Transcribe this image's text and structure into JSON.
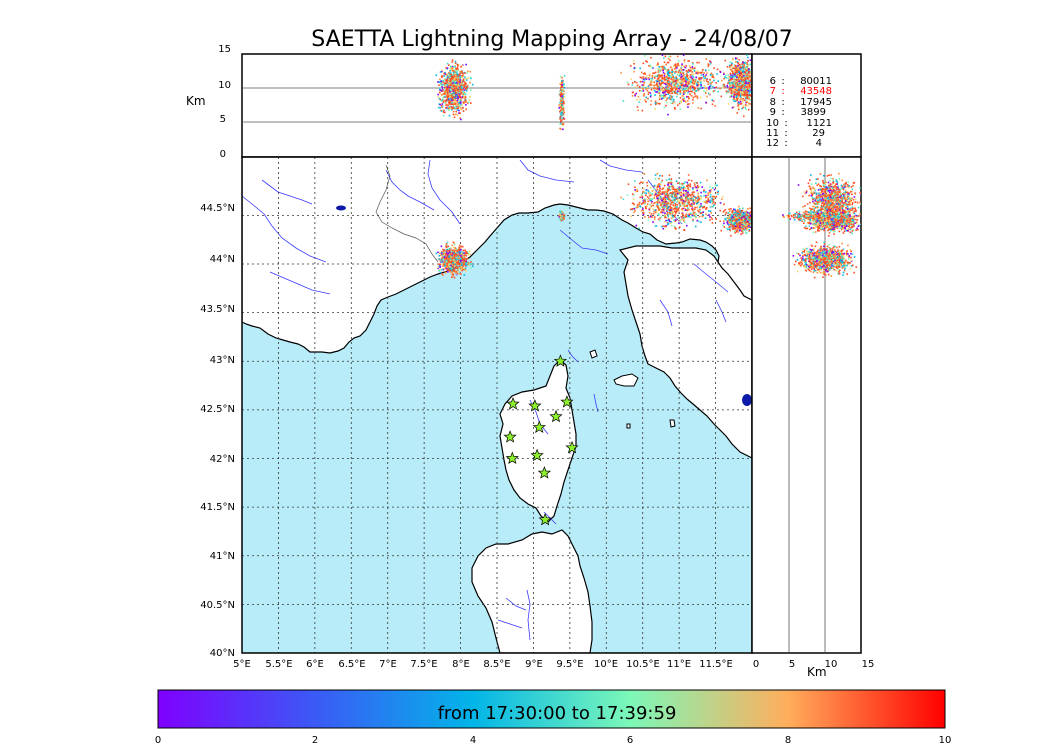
{
  "title": "SAETTA Lightning Mapping Array - 24/08/07",
  "altitude_unit": "Km",
  "altitude_ticks": [
    "0",
    "5",
    "10",
    "15"
  ],
  "lat_ticks": [
    "40°N",
    "40.5°N",
    "41°N",
    "41.5°N",
    "42°N",
    "42.5°N",
    "43°N",
    "43.5°N",
    "44°N",
    "44.5°N"
  ],
  "lon_ticks": [
    "5°E",
    "5.5°E",
    "6°E",
    "6.5°E",
    "7°E",
    "7.5°E",
    "8°E",
    "8.5°E",
    "9°E",
    "9.5°E",
    "10°E",
    "10.5°E",
    "11°E",
    "11.5°E"
  ],
  "station_stats": [
    {
      "stations": "6",
      "sep": ":",
      "count": "80011",
      "highlight": false
    },
    {
      "stations": "7",
      "sep": ":",
      "count": "43548",
      "highlight": true
    },
    {
      "stations": "8",
      "sep": ":",
      "count": "17945",
      "highlight": false
    },
    {
      "stations": "9",
      "sep": ":",
      "count": "3899",
      "highlight": false
    },
    {
      "stations": "10",
      "sep": ":",
      "count": "1121",
      "highlight": false
    },
    {
      "stations": "11",
      "sep": ":",
      "count": "29",
      "highlight": false
    },
    {
      "stations": "12",
      "sep": ":",
      "count": "4",
      "highlight": false
    }
  ],
  "colorbar": {
    "label": "from 17:30:00 to 17:39:59",
    "ticks": [
      "0",
      "2",
      "4",
      "6",
      "8",
      "10"
    ]
  },
  "colors": {
    "sea": "#b9ecf9",
    "land": "#ffffff",
    "rivers": "#3b3bff",
    "station_marker": "#8cf02d",
    "highlight": "#ff0000",
    "source_dominant": "#ff4a22"
  },
  "stations": [
    {
      "lon": 9.37,
      "lat": 43.0
    },
    {
      "lon": 8.72,
      "lat": 42.56
    },
    {
      "lon": 9.02,
      "lat": 42.54
    },
    {
      "lon": 9.46,
      "lat": 42.58
    },
    {
      "lon": 9.31,
      "lat": 42.43
    },
    {
      "lon": 9.08,
      "lat": 42.32
    },
    {
      "lon": 8.68,
      "lat": 42.22
    },
    {
      "lon": 9.53,
      "lat": 42.11
    },
    {
      "lon": 8.71,
      "lat": 42.0
    },
    {
      "lon": 9.05,
      "lat": 42.03
    },
    {
      "lon": 9.15,
      "lat": 41.85
    },
    {
      "lon": 9.16,
      "lat": 41.37
    }
  ],
  "lightning_clusters": [
    {
      "lon": 7.9,
      "lat": 44.05,
      "alt": 10,
      "lon_spread": 0.18,
      "lat_spread": 0.12
    },
    {
      "lon": 10.95,
      "lat": 44.65,
      "alt": 11,
      "lon_spread": 0.55,
      "lat_spread": 0.22
    },
    {
      "lon": 11.85,
      "lat": 44.45,
      "alt": 11,
      "lon_spread": 0.2,
      "lat_spread": 0.1
    },
    {
      "lon": 9.38,
      "lat": 44.5,
      "alt": 8,
      "lon_spread": 0.03,
      "lat_spread": 0.04
    }
  ]
}
